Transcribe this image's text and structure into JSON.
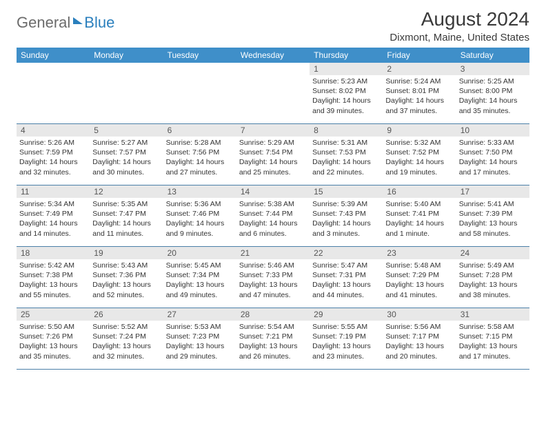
{
  "logo": {
    "text1": "General",
    "text2": "Blue"
  },
  "title": "August 2024",
  "location": "Dixmont, Maine, United States",
  "weekdays": [
    "Sunday",
    "Monday",
    "Tuesday",
    "Wednesday",
    "Thursday",
    "Friday",
    "Saturday"
  ],
  "colors": {
    "header_bg": "#3f8fc9",
    "daynum_bg": "#e8e8e8",
    "week_border": "#4a7fa8",
    "logo_gray": "#6b6b6b",
    "logo_blue": "#2a7fbd"
  },
  "weeks": [
    [
      {
        "blank": true
      },
      {
        "blank": true
      },
      {
        "blank": true
      },
      {
        "blank": true
      },
      {
        "n": "1",
        "sunrise": "5:23 AM",
        "sunset": "8:02 PM",
        "dl1": "Daylight: 14 hours",
        "dl2": "and 39 minutes."
      },
      {
        "n": "2",
        "sunrise": "5:24 AM",
        "sunset": "8:01 PM",
        "dl1": "Daylight: 14 hours",
        "dl2": "and 37 minutes."
      },
      {
        "n": "3",
        "sunrise": "5:25 AM",
        "sunset": "8:00 PM",
        "dl1": "Daylight: 14 hours",
        "dl2": "and 35 minutes."
      }
    ],
    [
      {
        "n": "4",
        "sunrise": "5:26 AM",
        "sunset": "7:59 PM",
        "dl1": "Daylight: 14 hours",
        "dl2": "and 32 minutes."
      },
      {
        "n": "5",
        "sunrise": "5:27 AM",
        "sunset": "7:57 PM",
        "dl1": "Daylight: 14 hours",
        "dl2": "and 30 minutes."
      },
      {
        "n": "6",
        "sunrise": "5:28 AM",
        "sunset": "7:56 PM",
        "dl1": "Daylight: 14 hours",
        "dl2": "and 27 minutes."
      },
      {
        "n": "7",
        "sunrise": "5:29 AM",
        "sunset": "7:54 PM",
        "dl1": "Daylight: 14 hours",
        "dl2": "and 25 minutes."
      },
      {
        "n": "8",
        "sunrise": "5:31 AM",
        "sunset": "7:53 PM",
        "dl1": "Daylight: 14 hours",
        "dl2": "and 22 minutes."
      },
      {
        "n": "9",
        "sunrise": "5:32 AM",
        "sunset": "7:52 PM",
        "dl1": "Daylight: 14 hours",
        "dl2": "and 19 minutes."
      },
      {
        "n": "10",
        "sunrise": "5:33 AM",
        "sunset": "7:50 PM",
        "dl1": "Daylight: 14 hours",
        "dl2": "and 17 minutes."
      }
    ],
    [
      {
        "n": "11",
        "sunrise": "5:34 AM",
        "sunset": "7:49 PM",
        "dl1": "Daylight: 14 hours",
        "dl2": "and 14 minutes."
      },
      {
        "n": "12",
        "sunrise": "5:35 AM",
        "sunset": "7:47 PM",
        "dl1": "Daylight: 14 hours",
        "dl2": "and 11 minutes."
      },
      {
        "n": "13",
        "sunrise": "5:36 AM",
        "sunset": "7:46 PM",
        "dl1": "Daylight: 14 hours",
        "dl2": "and 9 minutes."
      },
      {
        "n": "14",
        "sunrise": "5:38 AM",
        "sunset": "7:44 PM",
        "dl1": "Daylight: 14 hours",
        "dl2": "and 6 minutes."
      },
      {
        "n": "15",
        "sunrise": "5:39 AM",
        "sunset": "7:43 PM",
        "dl1": "Daylight: 14 hours",
        "dl2": "and 3 minutes."
      },
      {
        "n": "16",
        "sunrise": "5:40 AM",
        "sunset": "7:41 PM",
        "dl1": "Daylight: 14 hours",
        "dl2": "and 1 minute."
      },
      {
        "n": "17",
        "sunrise": "5:41 AM",
        "sunset": "7:39 PM",
        "dl1": "Daylight: 13 hours",
        "dl2": "and 58 minutes."
      }
    ],
    [
      {
        "n": "18",
        "sunrise": "5:42 AM",
        "sunset": "7:38 PM",
        "dl1": "Daylight: 13 hours",
        "dl2": "and 55 minutes."
      },
      {
        "n": "19",
        "sunrise": "5:43 AM",
        "sunset": "7:36 PM",
        "dl1": "Daylight: 13 hours",
        "dl2": "and 52 minutes."
      },
      {
        "n": "20",
        "sunrise": "5:45 AM",
        "sunset": "7:34 PM",
        "dl1": "Daylight: 13 hours",
        "dl2": "and 49 minutes."
      },
      {
        "n": "21",
        "sunrise": "5:46 AM",
        "sunset": "7:33 PM",
        "dl1": "Daylight: 13 hours",
        "dl2": "and 47 minutes."
      },
      {
        "n": "22",
        "sunrise": "5:47 AM",
        "sunset": "7:31 PM",
        "dl1": "Daylight: 13 hours",
        "dl2": "and 44 minutes."
      },
      {
        "n": "23",
        "sunrise": "5:48 AM",
        "sunset": "7:29 PM",
        "dl1": "Daylight: 13 hours",
        "dl2": "and 41 minutes."
      },
      {
        "n": "24",
        "sunrise": "5:49 AM",
        "sunset": "7:28 PM",
        "dl1": "Daylight: 13 hours",
        "dl2": "and 38 minutes."
      }
    ],
    [
      {
        "n": "25",
        "sunrise": "5:50 AM",
        "sunset": "7:26 PM",
        "dl1": "Daylight: 13 hours",
        "dl2": "and 35 minutes."
      },
      {
        "n": "26",
        "sunrise": "5:52 AM",
        "sunset": "7:24 PM",
        "dl1": "Daylight: 13 hours",
        "dl2": "and 32 minutes."
      },
      {
        "n": "27",
        "sunrise": "5:53 AM",
        "sunset": "7:23 PM",
        "dl1": "Daylight: 13 hours",
        "dl2": "and 29 minutes."
      },
      {
        "n": "28",
        "sunrise": "5:54 AM",
        "sunset": "7:21 PM",
        "dl1": "Daylight: 13 hours",
        "dl2": "and 26 minutes."
      },
      {
        "n": "29",
        "sunrise": "5:55 AM",
        "sunset": "7:19 PM",
        "dl1": "Daylight: 13 hours",
        "dl2": "and 23 minutes."
      },
      {
        "n": "30",
        "sunrise": "5:56 AM",
        "sunset": "7:17 PM",
        "dl1": "Daylight: 13 hours",
        "dl2": "and 20 minutes."
      },
      {
        "n": "31",
        "sunrise": "5:58 AM",
        "sunset": "7:15 PM",
        "dl1": "Daylight: 13 hours",
        "dl2": "and 17 minutes."
      }
    ]
  ]
}
